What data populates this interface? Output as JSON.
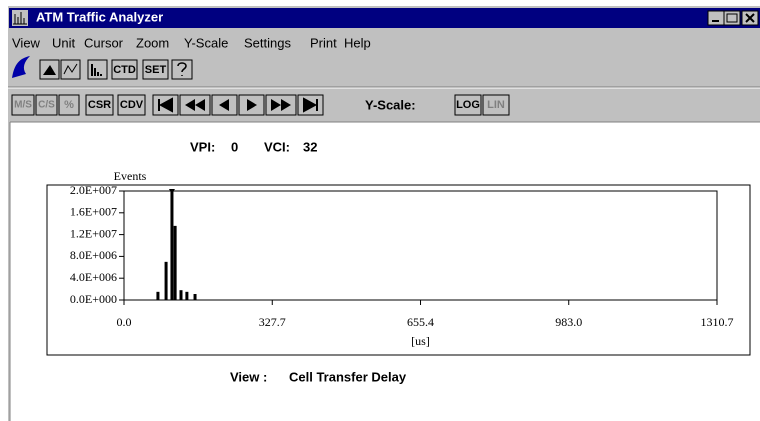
{
  "window": {
    "title": "ATM Traffic Analyzer"
  },
  "menu": [
    "View",
    "Unit",
    "Cursor",
    "Zoom",
    "Y-Scale",
    "Settings",
    "Print",
    "Help"
  ],
  "toolbar1": {
    "ctd": "CTD",
    "set": "SET"
  },
  "toolbar2": {
    "ms": "M/S",
    "cs": "C/S",
    "pct": "%",
    "csr": "CSR",
    "cdv": "CDV",
    "yscale_label": "Y-Scale:",
    "log": "LOG",
    "lin": "LIN"
  },
  "header": {
    "vpi_label": "VPI:",
    "vpi": "0",
    "vci_label": "VCI:",
    "vci": "32"
  },
  "footer": {
    "view_label": "View :",
    "view": "Cell Transfer Delay"
  },
  "chart_data": {
    "type": "bar",
    "ylabel": "Events",
    "xlabel": "[us]",
    "x": [
      75,
      93,
      106,
      113,
      126,
      139,
      157
    ],
    "values": [
      1500000,
      7000000,
      20000000,
      13600000,
      1800000,
      1500000,
      1100000
    ],
    "color": "#000000",
    "xlim": [
      0,
      1310.7
    ],
    "xticks": [
      {
        "value": 0,
        "label": "0.0"
      },
      327.7,
      655.4,
      {
        "value": 983,
        "label": "983.0"
      },
      1310.7
    ],
    "ylim": [
      0,
      20000000
    ],
    "yticks": [
      {
        "value": 0,
        "label": "0.0E+000"
      },
      {
        "value": 4000000,
        "label": "4.0E+006"
      },
      {
        "value": 8000000,
        "label": "8.0E+006"
      },
      {
        "value": 12000000,
        "label": "1.2E+007"
      },
      {
        "value": 16000000,
        "label": "1.6E+007"
      },
      {
        "value": 20000000,
        "label": "2.0E+007"
      }
    ]
  }
}
